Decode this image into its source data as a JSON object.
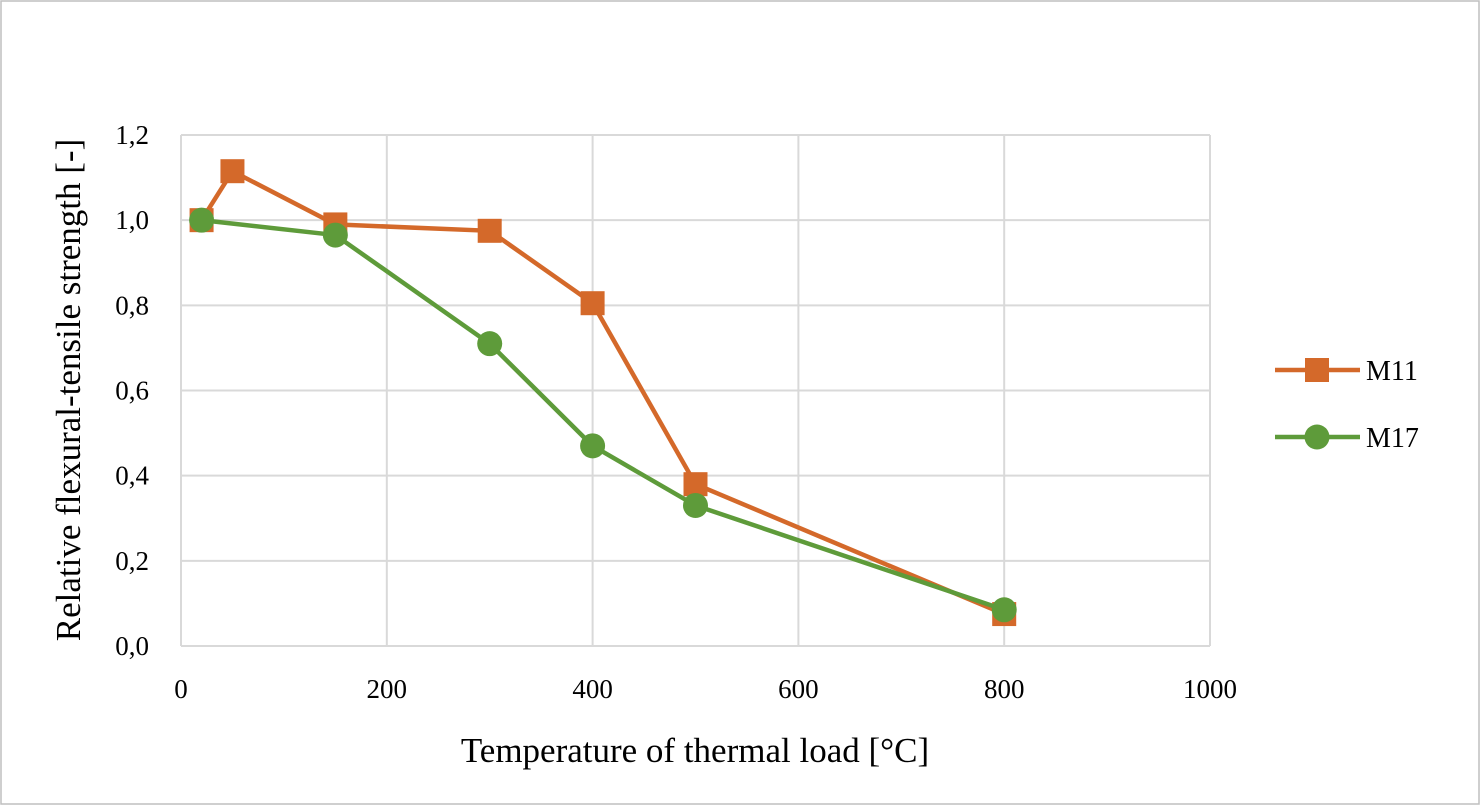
{
  "chart_data": {
    "type": "line",
    "title": "",
    "xlabel": "Temperature of thermal load [°C]",
    "ylabel": "Relative flexural-tensile strength [-]",
    "xlim": [
      0,
      1000
    ],
    "ylim": [
      0,
      1.2
    ],
    "x_ticks": [
      0,
      200,
      400,
      600,
      800,
      1000
    ],
    "x_tick_labels": [
      "0",
      "200",
      "400",
      "600",
      "800",
      "1000"
    ],
    "y_ticks": [
      0,
      0.2,
      0.4,
      0.6,
      0.8,
      1.0,
      1.2
    ],
    "y_tick_labels": [
      "0,0",
      "0,2",
      "0,4",
      "0,6",
      "0,8",
      "1,0",
      "1,2"
    ],
    "grid": true,
    "legend_position": "right",
    "series": [
      {
        "name": "M11",
        "marker": "square",
        "color": "#D4692A",
        "x": [
          20,
          50,
          150,
          300,
          400,
          500,
          800
        ],
        "y": [
          1.0,
          1.115,
          0.99,
          0.975,
          0.805,
          0.38,
          0.075
        ]
      },
      {
        "name": "M17",
        "marker": "circle",
        "color": "#5E9B3A",
        "x": [
          20,
          150,
          300,
          400,
          500,
          800
        ],
        "y": [
          1.0,
          0.965,
          0.71,
          0.47,
          0.33,
          0.085
        ]
      }
    ]
  }
}
